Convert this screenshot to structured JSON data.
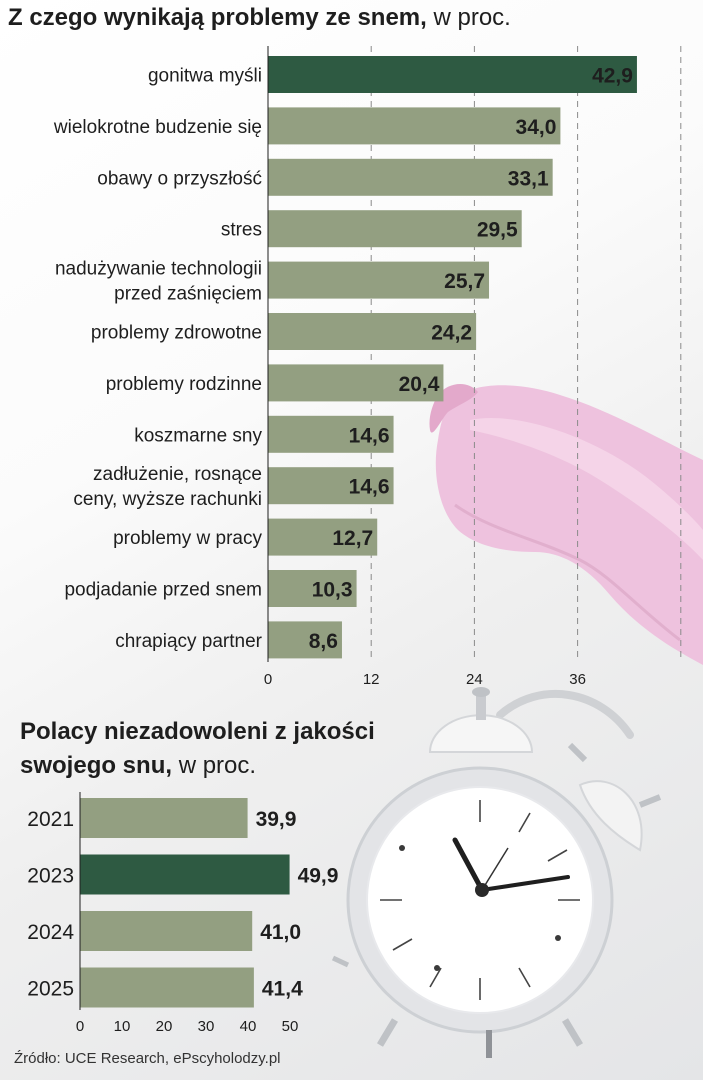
{
  "chart_data": [
    {
      "type": "bar",
      "orientation": "horizontal",
      "title": "Z czego wynikają problemy ze snem,",
      "subtitle": "w proc.",
      "categories": [
        [
          "gonitwa myśli"
        ],
        [
          "wielokrotne budzenie się"
        ],
        [
          "obawy o przyszłość"
        ],
        [
          "stres"
        ],
        [
          "nadużywanie technologii",
          "przed zaśnięciem"
        ],
        [
          "problemy zdrowotne"
        ],
        [
          "problemy rodzinne"
        ],
        [
          "koszmarne sny"
        ],
        [
          "zadłużenie, rosnące",
          "ceny, wyższe rachunki"
        ],
        [
          "problemy w pracy"
        ],
        [
          "podjadanie przed snem"
        ],
        [
          "chrapiący partner"
        ]
      ],
      "values": [
        42.9,
        34.0,
        33.1,
        29.5,
        25.7,
        24.2,
        20.4,
        14.6,
        14.6,
        12.7,
        10.3,
        8.6
      ],
      "value_labels": [
        "42,9",
        "34,0",
        "33,1",
        "29,5",
        "25,7",
        "24,2",
        "20,4",
        "14,6",
        "14,6",
        "12,7",
        "10,3",
        "8,6"
      ],
      "highlight_index": 0,
      "xlim": [
        0,
        48
      ],
      "xticks": [
        0,
        12,
        24,
        36
      ],
      "grid": "dashed vertical"
    },
    {
      "type": "bar",
      "orientation": "horizontal",
      "title": "Polacy niezadowoleni z jakości swojego snu,",
      "subtitle": "w proc.",
      "categories": [
        "2021",
        "2023",
        "2024",
        "2025"
      ],
      "values": [
        39.9,
        49.9,
        41.0,
        41.4
      ],
      "value_labels": [
        "39,9",
        "49,9",
        "41,0",
        "41,4"
      ],
      "highlight_index": 1,
      "xlim": [
        0,
        50
      ],
      "xticks": [
        0,
        10,
        20,
        30,
        40,
        50
      ],
      "grid": "none"
    }
  ],
  "source": "Źródło: UCE Research, ePscyholodzy.pl",
  "colors": {
    "bar": "#939f81",
    "highlight": "#2e5a42",
    "text": "#1e1e1e",
    "grid": "#8a8a8a"
  }
}
